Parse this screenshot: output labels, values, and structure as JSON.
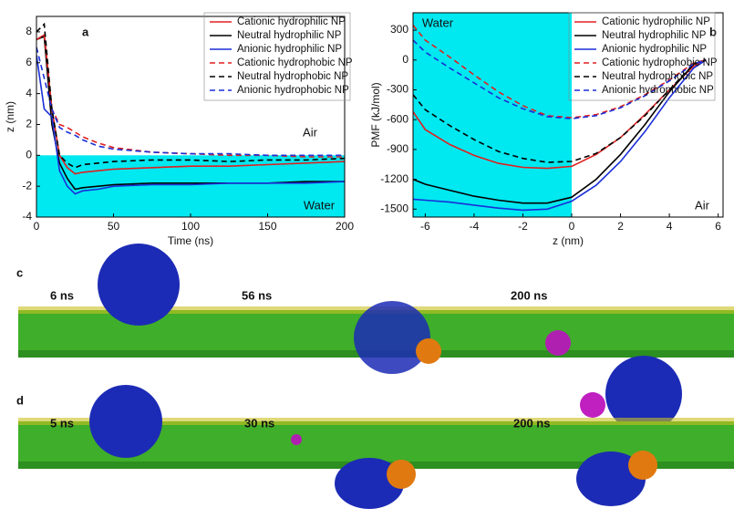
{
  "chart_data": [
    {
      "type": "line",
      "panel_label": "a",
      "xlabel": "Time (ns)",
      "ylabel": "z (nm)",
      "annotations": [
        "Air",
        "Water"
      ],
      "x": [
        0,
        5,
        10,
        15,
        20,
        25,
        30,
        40,
        50,
        75,
        100,
        125,
        150,
        175,
        200
      ],
      "xlim": [
        0,
        200
      ],
      "xticks": [
        0,
        50,
        100,
        150,
        200
      ],
      "ylim": [
        -4,
        9
      ],
      "yticks": [
        -4,
        -2,
        0,
        2,
        4,
        6,
        8
      ],
      "shade": {
        "axis": "y",
        "from": -4,
        "to": 0,
        "color": "#00e8f0"
      },
      "series": [
        {
          "name": "Cationic hydrophilic NP",
          "color": "#e02020",
          "dash": false,
          "values": [
            7.5,
            7.8,
            3,
            0,
            -0.8,
            -1.2,
            -1.1,
            -1.0,
            -0.9,
            -0.8,
            -0.7,
            -0.7,
            -0.6,
            -0.5,
            -0.4
          ]
        },
        {
          "name": "Neutral hydrophilic NP",
          "color": "#000000",
          "dash": false,
          "values": [
            7.5,
            7.7,
            2,
            -0.5,
            -1.5,
            -2.2,
            -2.1,
            -2.0,
            -1.9,
            -1.8,
            -1.8,
            -1.8,
            -1.8,
            -1.7,
            -1.7
          ]
        },
        {
          "name": "Anionic hydrophilic NP",
          "color": "#1a2fd8",
          "dash": false,
          "values": [
            6.5,
            3.0,
            2.5,
            -1.0,
            -2.0,
            -2.5,
            -2.3,
            -2.2,
            -2.0,
            -1.9,
            -1.9,
            -1.8,
            -1.8,
            -1.8,
            -1.7
          ]
        },
        {
          "name": "Cationic hydrophobic NP",
          "color": "#e02020",
          "dash": true,
          "values": [
            7.5,
            7.8,
            3,
            2,
            1.8,
            1.5,
            1.2,
            0.8,
            0.5,
            0.2,
            0.1,
            0,
            0,
            -0.1,
            -0.1
          ]
        },
        {
          "name": "Neutral hydrophobic NP",
          "color": "#000000",
          "dash": true,
          "values": [
            8,
            8.5,
            3,
            0,
            -0.5,
            -0.8,
            -0.6,
            -0.5,
            -0.4,
            -0.3,
            -0.3,
            -0.4,
            -0.3,
            -0.3,
            -0.2
          ]
        },
        {
          "name": "Anionic hydrophobic NP",
          "color": "#1a2fd8",
          "dash": true,
          "values": [
            7,
            5,
            3,
            1.8,
            1.5,
            1.3,
            1.0,
            0.6,
            0.4,
            0.2,
            0.1,
            0.1,
            0,
            0,
            0
          ]
        }
      ]
    },
    {
      "type": "line",
      "panel_label": "b",
      "xlabel": "z (nm)",
      "ylabel": "PMF (kJ/mol)",
      "annotations": [
        "Water",
        "Air"
      ],
      "x": [
        -6.5,
        -6,
        -5,
        -4,
        -3,
        -2,
        -1,
        0,
        1,
        2,
        3,
        4,
        5,
        5.5
      ],
      "xlim": [
        -6.5,
        6.2
      ],
      "xticks": [
        -6,
        -4,
        -2,
        0,
        2,
        4,
        6
      ],
      "ylim": [
        -1580,
        475
      ],
      "yticks": [
        -1500,
        -1200,
        -900,
        -600,
        -300,
        0,
        300
      ],
      "shade": {
        "axis": "x",
        "from": -6.5,
        "to": 0,
        "color": "#00e8f0"
      },
      "series": [
        {
          "name": "Cationic hydrophilic NP",
          "color": "#e02020",
          "dash": false,
          "values": [
            -520,
            -700,
            -850,
            -960,
            -1040,
            -1080,
            -1090,
            -1070,
            -950,
            -780,
            -550,
            -300,
            -60,
            0
          ]
        },
        {
          "name": "Neutral hydrophilic NP",
          "color": "#000000",
          "dash": false,
          "values": [
            -1200,
            -1250,
            -1310,
            -1370,
            -1410,
            -1440,
            -1440,
            -1380,
            -1200,
            -950,
            -650,
            -320,
            -40,
            0
          ]
        },
        {
          "name": "Anionic hydrophilic NP",
          "color": "#1a2fd8",
          "dash": false,
          "values": [
            -1400,
            -1410,
            -1430,
            -1460,
            -1490,
            -1510,
            -1500,
            -1420,
            -1260,
            -1020,
            -720,
            -380,
            -80,
            0
          ]
        },
        {
          "name": "Cationic hydrophobic NP",
          "color": "#e02020",
          "dash": true,
          "values": [
            350,
            200,
            30,
            -150,
            -320,
            -460,
            -560,
            -580,
            -550,
            -470,
            -350,
            -200,
            -30,
            0
          ]
        },
        {
          "name": "Neutral hydrophobic NP",
          "color": "#000000",
          "dash": true,
          "values": [
            -350,
            -500,
            -660,
            -800,
            -920,
            -990,
            -1030,
            -1020,
            -940,
            -780,
            -560,
            -300,
            -40,
            0
          ]
        },
        {
          "name": "Anionic hydrophobic NP",
          "color": "#1a2fd8",
          "dash": true,
          "values": [
            200,
            80,
            -80,
            -230,
            -380,
            -490,
            -570,
            -590,
            -560,
            -480,
            -360,
            -210,
            -40,
            0
          ]
        }
      ]
    }
  ],
  "snapshots": [
    {
      "label": "c",
      "times": [
        "6 ns",
        "56 ns",
        "200 ns"
      ]
    },
    {
      "label": "d",
      "times": [
        "5 ns",
        "30 ns",
        "200 ns"
      ]
    }
  ]
}
